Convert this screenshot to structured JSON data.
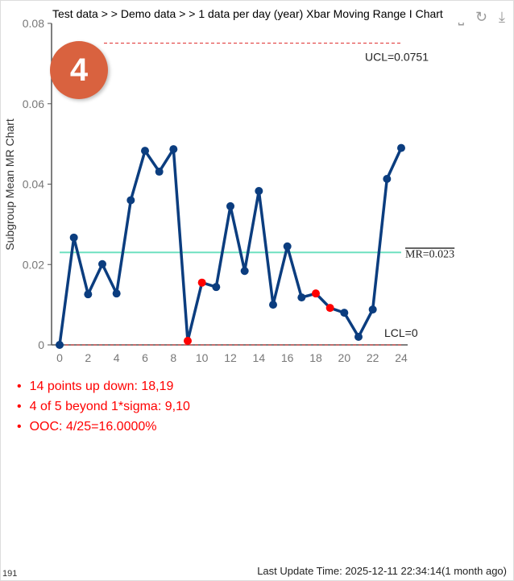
{
  "header": {
    "title": "Test data >  > Demo data >  > 1 data per day (year)   Xbar Moving Range I Chart",
    "badge": "4"
  },
  "chart_data": {
    "type": "line",
    "ylabel": "Subgroup Mean MR Chart",
    "xlabel": "",
    "xlim": [
      0,
      24
    ],
    "ylim": [
      0,
      0.08
    ],
    "xticks": [
      "0",
      "2",
      "4",
      "6",
      "8",
      "10",
      "12",
      "14",
      "16",
      "18",
      "20",
      "22",
      "24"
    ],
    "yticks": [
      "0",
      "0.02",
      "0.04",
      "0.06",
      "0.08"
    ],
    "x": [
      0,
      1,
      2,
      3,
      4,
      5,
      6,
      7,
      8,
      9,
      10,
      11,
      12,
      13,
      14,
      15,
      16,
      17,
      18,
      19,
      20,
      21,
      22,
      23,
      24
    ],
    "values": [
      0,
      0.0267,
      0.0126,
      0.0201,
      0.0128,
      0.036,
      0.0483,
      0.0431,
      0.0487,
      0.001,
      0.0155,
      0.0144,
      0.0345,
      0.0184,
      0.0383,
      0.01,
      0.0245,
      0.0118,
      0.0128,
      0.0092,
      0.008,
      0.002,
      0.0088,
      0.0413,
      0.049
    ],
    "ooc_points": [
      9,
      10,
      18,
      19
    ],
    "ucl": 0.0751,
    "ucl_label": "UCL=0.0751",
    "center": 0.023,
    "center_label": "MR=0.023",
    "lcl": 0,
    "lcl_label": "LCL=0",
    "colors": {
      "line": "#0b3d7f",
      "ooc": "#ff0000",
      "ucl": "#e03030",
      "center": "#6fe0c0"
    }
  },
  "rules": [
    "14 points up down:  18,19",
    "4 of  5 beyond 1*sigma:  9,10",
    "OOC: 4/25=16.0000%"
  ],
  "footer": {
    "update": "Last Update Time: 2025-12-11 22:34:14(1 month ago)",
    "corner": "191"
  }
}
